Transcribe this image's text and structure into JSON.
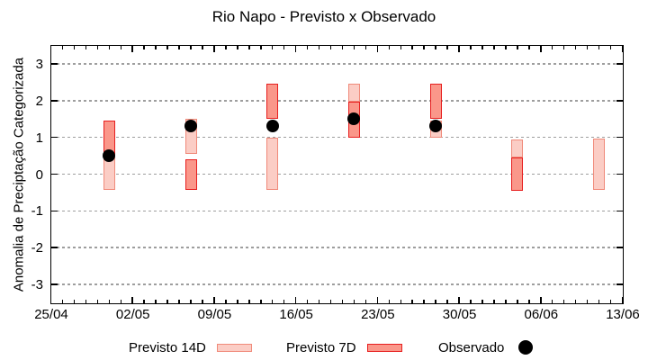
{
  "chart_data": {
    "type": "bar",
    "subtype": "floating-range-bars-with-observed-points",
    "title": "Rio Napo - Previsto x Observado",
    "ylabel": "Anomalia de Preciptação Categorizada",
    "xlabel": "",
    "ylim": [
      -3.5,
      3.5
    ],
    "yticks": [
      -3,
      -2,
      -1,
      0,
      1,
      2,
      3
    ],
    "grid": true,
    "legend_position": "bottom-center",
    "x_axis": {
      "days_total": 49,
      "minor_tick_interval_days": 1,
      "major_ticks": [
        {
          "day": 0,
          "label": "25/04"
        },
        {
          "day": 7,
          "label": "02/05"
        },
        {
          "day": 14,
          "label": "09/05"
        },
        {
          "day": 21,
          "label": "16/05"
        },
        {
          "day": 28,
          "label": "23/05"
        },
        {
          "day": 35,
          "label": "30/05"
        },
        {
          "day": 42,
          "label": "06/06"
        },
        {
          "day": 49,
          "label": "13/06"
        }
      ]
    },
    "series": [
      {
        "name": "Previsto 14D",
        "type": "range-bar",
        "color_fill": "#fbcdc5",
        "color_border": "#f08a7a"
      },
      {
        "name": "Previsto 7D",
        "type": "range-bar",
        "color_fill": "#fa978a",
        "color_border": "#e71f1f"
      },
      {
        "name": "Observado",
        "type": "point",
        "color": "#000000"
      }
    ],
    "bars": [
      {
        "date": "30/04",
        "day": 5,
        "previsto_14d": [
          -0.43,
          0.5
        ],
        "previsto_7d": [
          0.5,
          1.45
        ],
        "observado": 0.5
      },
      {
        "date": "07/05",
        "day": 12,
        "previsto_14d": [
          0.55,
          1.5
        ],
        "previsto_7d": [
          -0.43,
          0.4
        ],
        "observado": 1.3
      },
      {
        "date": "14/05",
        "day": 19,
        "previsto_14d": [
          -0.43,
          0.98
        ],
        "previsto_7d": [
          1.5,
          2.45
        ],
        "observado": 1.3
      },
      {
        "date": "21/05",
        "day": 26,
        "previsto_14d": [
          1.98,
          2.45
        ],
        "previsto_7d": [
          1.0,
          1.98
        ],
        "observado": 1.5
      },
      {
        "date": "28/05",
        "day": 33,
        "previsto_14d": [
          1.0,
          1.45
        ],
        "previsto_7d": [
          1.5,
          2.45
        ],
        "observado": 1.3
      },
      {
        "date": "04/06",
        "day": 40,
        "previsto_14d": [
          0.45,
          0.95
        ],
        "previsto_7d": [
          -0.45,
          0.45
        ],
        "observado": null
      },
      {
        "date": "11/06",
        "day": 47,
        "previsto_14d": [
          -0.44,
          0.96
        ],
        "previsto_7d": null,
        "observado": null
      }
    ]
  }
}
